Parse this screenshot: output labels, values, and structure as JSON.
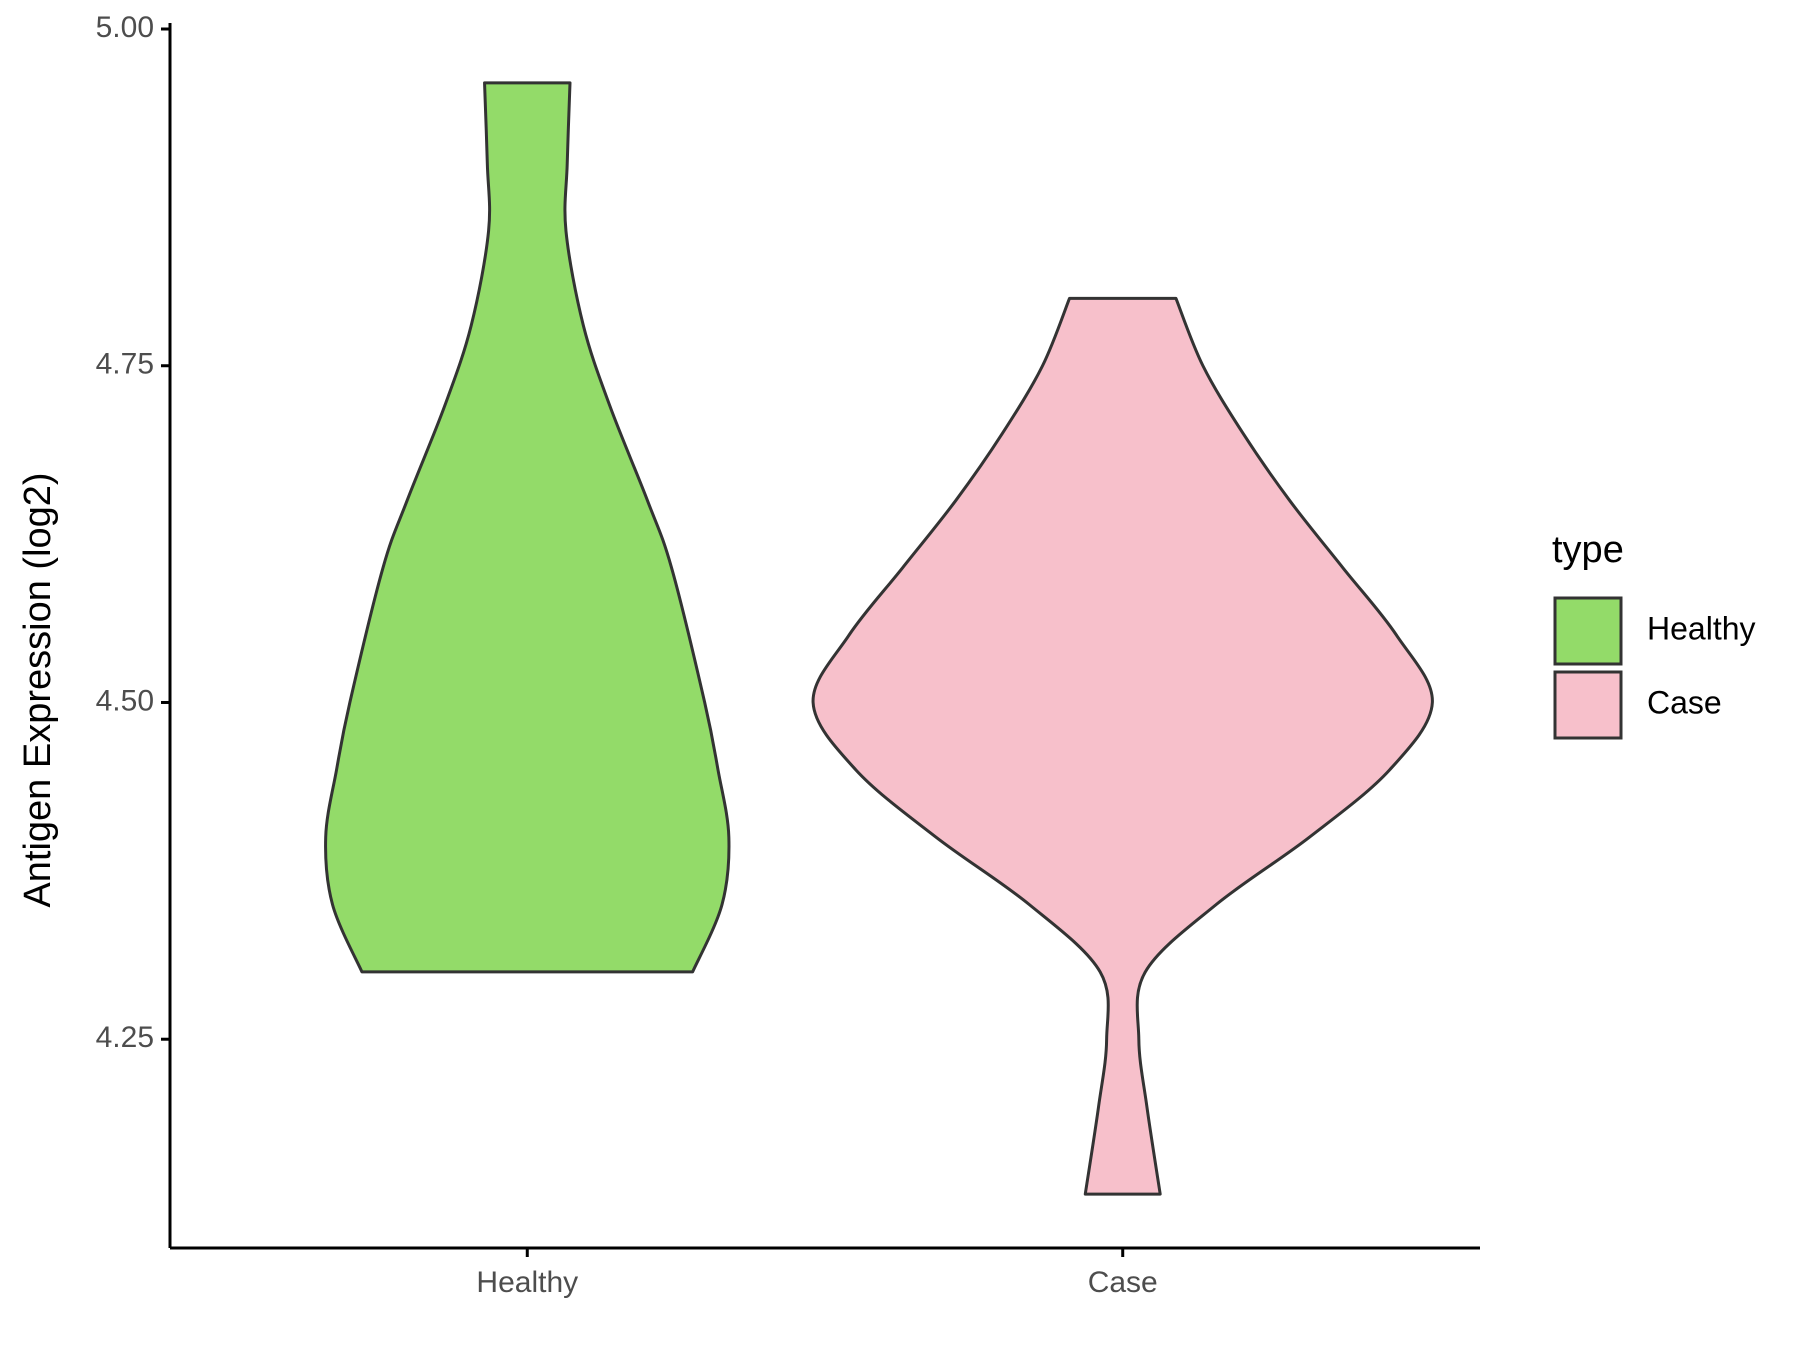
{
  "chart_data": {
    "type": "violin",
    "ylabel": "Antigen Expression (log2)",
    "categories": [
      "Healthy",
      "Case"
    ],
    "legend_title": "type",
    "legend_position": "right",
    "ylim": [
      4.095,
      5.0
    ],
    "yticks": [
      {
        "value": 4.25,
        "label": "4.25"
      },
      {
        "value": 4.5,
        "label": "4.50"
      },
      {
        "value": 4.75,
        "label": "4.75"
      },
      {
        "value": 5.0,
        "label": "5.00"
      }
    ],
    "series": [
      {
        "name": "Healthy",
        "color": "#93db69",
        "y": [
          4.96,
          4.9,
          4.85,
          4.78,
          4.72,
          4.65,
          4.6,
          4.5,
          4.45,
          4.4,
          4.35,
          4.3
        ],
        "density": [
          0.138,
          0.129,
          0.125,
          0.181,
          0.267,
          0.388,
          0.466,
          0.573,
          0.616,
          0.651,
          0.629,
          0.534
        ]
      },
      {
        "name": "Case",
        "color": "#f7c0cb",
        "y": [
          4.8,
          4.75,
          4.7,
          4.65,
          4.6,
          4.55,
          4.5,
          4.45,
          4.4,
          4.35,
          4.3,
          4.25,
          4.2,
          4.135
        ],
        "density": [
          0.172,
          0.259,
          0.388,
          0.539,
          0.711,
          0.884,
          1.0,
          0.862,
          0.603,
          0.302,
          0.073,
          0.052,
          0.078,
          0.121
        ]
      }
    ]
  }
}
